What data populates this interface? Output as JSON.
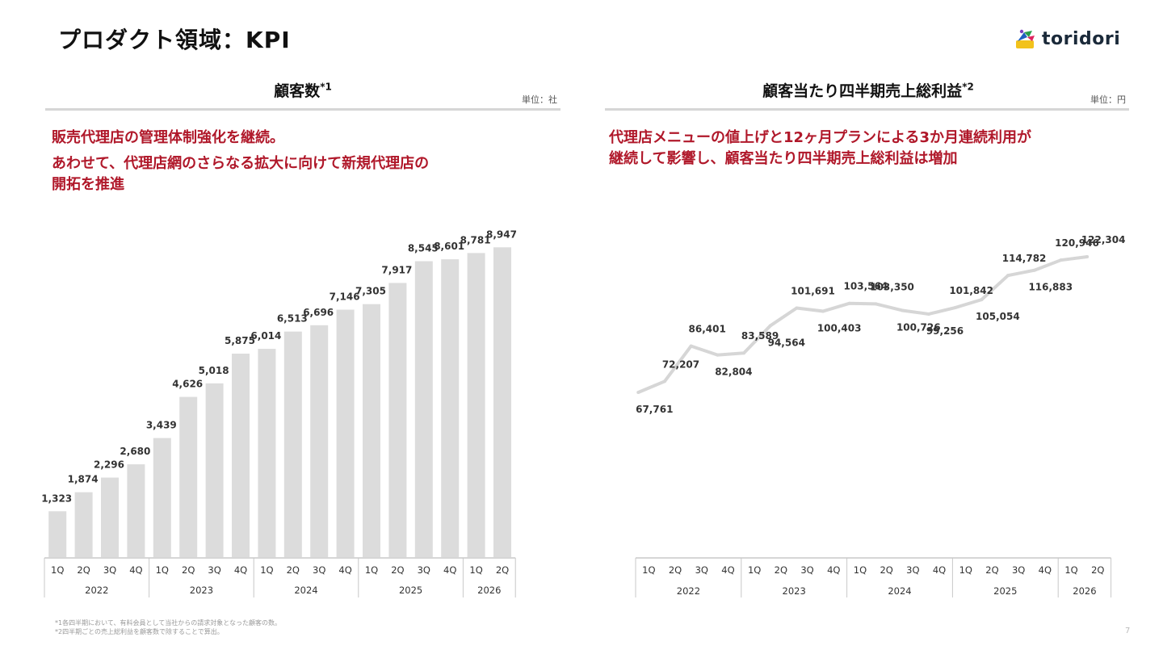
{
  "header": {
    "title": "プロダクト領域：KPI",
    "logo_text": "toridori"
  },
  "left": {
    "title": "顧客数",
    "title_note": "*1",
    "unit": "単位：社",
    "message_lines": [
      "販売代理店の管理体制強化を継続。",
      "あわせて、代理店網のさらなる拡大に向けて新規代理店の",
      "開拓を推進"
    ]
  },
  "right": {
    "title": "顧客当たり四半期売上総利益",
    "title_note": "*2",
    "unit": "単位：円",
    "message_lines": [
      "代理店メニューの値上げと12ヶ月プランによる3か月連続利用が",
      "継続して影響し、顧客当たり四半期売上総利益は増加"
    ]
  },
  "chart_data": [
    {
      "type": "bar",
      "title": "顧客数",
      "categories": [
        "1Q",
        "2Q",
        "3Q",
        "4Q",
        "1Q",
        "2Q",
        "3Q",
        "4Q",
        "1Q",
        "2Q",
        "3Q",
        "4Q",
        "1Q",
        "2Q",
        "3Q",
        "4Q",
        "1Q",
        "2Q"
      ],
      "years": [
        {
          "label": "2022",
          "count": 4
        },
        {
          "label": "2023",
          "count": 4
        },
        {
          "label": "2024",
          "count": 4
        },
        {
          "label": "2025",
          "count": 4
        },
        {
          "label": "2026",
          "count": 2
        }
      ],
      "values": [
        1323,
        1874,
        2296,
        2680,
        3439,
        4626,
        5018,
        5875,
        6014,
        6513,
        6696,
        7146,
        7305,
        7917,
        8545,
        8601,
        8781,
        8947
      ],
      "value_labels": [
        "1,323",
        "1,874",
        "2,296",
        "2,680",
        "3,439",
        "4,626",
        "5,018",
        "5,875",
        "6,014",
        "6,513",
        "6,696",
        "7,146",
        "7,305",
        "7,917",
        "8,545",
        "8,601",
        "8,781",
        "8,947"
      ],
      "ylim": [
        0,
        9000
      ],
      "unit": "社",
      "bar_color": "#dcdcdc",
      "grid": false
    },
    {
      "type": "line",
      "title": "顧客当たり四半期売上総利益",
      "categories": [
        "1Q",
        "2Q",
        "3Q",
        "4Q",
        "1Q",
        "2Q",
        "3Q",
        "4Q",
        "1Q",
        "2Q",
        "3Q",
        "4Q",
        "1Q",
        "2Q",
        "3Q",
        "4Q",
        "1Q",
        "2Q"
      ],
      "years": [
        {
          "label": "2022",
          "count": 4
        },
        {
          "label": "2023",
          "count": 4
        },
        {
          "label": "2024",
          "count": 4
        },
        {
          "label": "2025",
          "count": 4
        },
        {
          "label": "2026",
          "count": 2
        }
      ],
      "values": [
        67761,
        72207,
        86401,
        82804,
        83589,
        94564,
        101691,
        100403,
        103564,
        103350,
        100726,
        99256,
        101842,
        105054,
        114782,
        116883,
        120946,
        122304
      ],
      "value_labels": [
        "67,761",
        "72,207",
        "86,401",
        "82,804",
        "83,589",
        "94,564",
        "101,691",
        "100,403",
        "103,564",
        "103,350",
        "100,726",
        "99,256",
        "101,842",
        "105,054",
        "114,782",
        "116,883",
        "120,946",
        "122,304"
      ],
      "label_position": [
        "below",
        "above",
        "above",
        "below",
        "above",
        "below",
        "above",
        "below",
        "above",
        "above",
        "below",
        "below",
        "above",
        "below",
        "above",
        "below",
        "above",
        "above"
      ],
      "unit": "円",
      "line_color": "#d6d6d6",
      "grid": false
    }
  ],
  "footnotes": [
    "*1各四半期において、有料会員として当社からの請求対象となった顧客の数。",
    "*2四半期ごとの売上総利益を顧客数で除することで算出。"
  ],
  "page_number": "7",
  "colors": {
    "accent": "#b0182a",
    "bars": "#dcdcdc",
    "line": "#d6d6d6",
    "axis": "#c8c8c8"
  }
}
